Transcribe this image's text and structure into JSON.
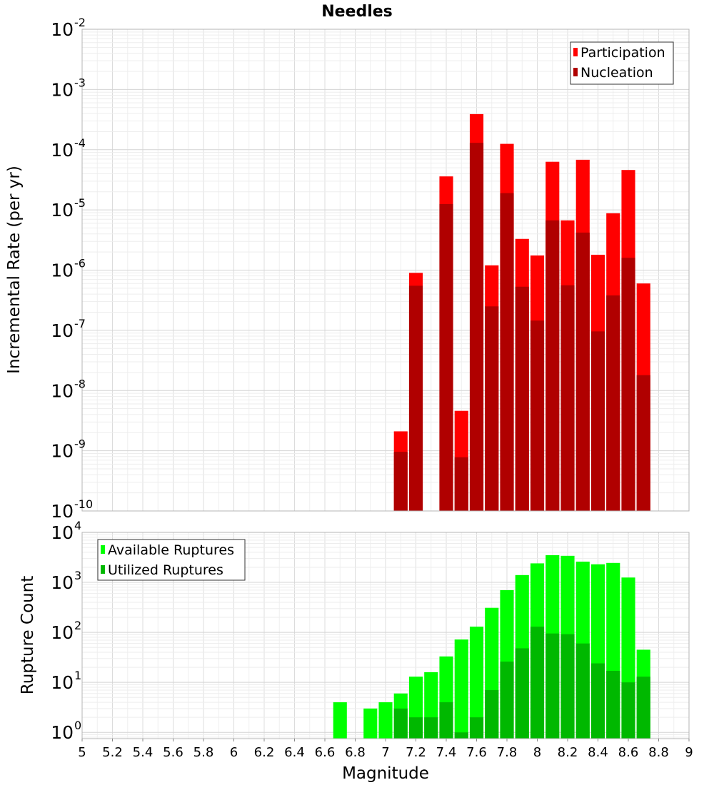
{
  "title": "Needles",
  "xlabel": "Magnitude",
  "x_ticks": [
    "5",
    "5.2",
    "5.4",
    "5.6",
    "5.8",
    "6",
    "6.2",
    "6.4",
    "6.6",
    "6.8",
    "7",
    "7.2",
    "7.4",
    "7.6",
    "7.8",
    "8",
    "8.2",
    "8.4",
    "8.6",
    "8.8",
    "9"
  ],
  "chart_data": [
    {
      "type": "bar",
      "title": "Needles",
      "ylabel": "Incremental Rate (per yr)",
      "yscale": "log",
      "xlim": [
        5,
        9
      ],
      "ylim": [
        1e-10,
        0.01
      ],
      "y_ticks": [
        {
          "base": "10",
          "exp": "-10"
        },
        {
          "base": "10",
          "exp": "-9"
        },
        {
          "base": "10",
          "exp": "-8"
        },
        {
          "base": "10",
          "exp": "-7"
        },
        {
          "base": "10",
          "exp": "-6"
        },
        {
          "base": "10",
          "exp": "-5"
        },
        {
          "base": "10",
          "exp": "-4"
        },
        {
          "base": "10",
          "exp": "-3"
        },
        {
          "base": "10",
          "exp": "-2"
        }
      ],
      "legend_position": "top-right",
      "grid": true,
      "x": [
        7.1,
        7.2,
        7.4,
        7.5,
        7.6,
        7.7,
        7.8,
        7.9,
        8.0,
        8.1,
        8.2,
        8.3,
        8.4,
        8.5,
        8.6,
        8.7
      ],
      "series": [
        {
          "name": "Participation",
          "color": "#ff0000",
          "values": [
            2.1e-09,
            9e-07,
            3.6e-05,
            4.6e-09,
            0.00039,
            1.2e-06,
            0.000125,
            3.3e-06,
            1.75e-06,
            6.3e-05,
            6.7e-06,
            6.8e-05,
            1.8e-06,
            8.8e-06,
            4.6e-05,
            6e-07
          ]
        },
        {
          "name": "Nucleation",
          "color": "#b00000",
          "values": [
            9.6e-10,
            5.5e-07,
            1.25e-05,
            7.8e-10,
            0.00013,
            2.5e-07,
            1.9e-05,
            5.3e-07,
            1.45e-07,
            6.7e-06,
            5.6e-07,
            4.2e-06,
            9.6e-08,
            3.8e-07,
            1.6e-06,
            1.8e-08
          ]
        }
      ]
    },
    {
      "type": "bar",
      "ylabel": "Rupture Count",
      "yscale": "log",
      "xlim": [
        5,
        9
      ],
      "ylim": [
        0.75,
        10000
      ],
      "y_ticks": [
        {
          "base": "10",
          "exp": "0"
        },
        {
          "base": "10",
          "exp": "1"
        },
        {
          "base": "10",
          "exp": "2"
        },
        {
          "base": "10",
          "exp": "3"
        },
        {
          "base": "10",
          "exp": "4"
        }
      ],
      "legend_position": "top-left",
      "grid": true,
      "x": [
        6.7,
        6.9,
        7.0,
        7.1,
        7.2,
        7.3,
        7.4,
        7.5,
        7.6,
        7.7,
        7.8,
        7.9,
        8.0,
        8.1,
        8.2,
        8.3,
        8.4,
        8.5,
        8.6,
        8.7
      ],
      "series": [
        {
          "name": "Available Ruptures",
          "color": "#00ff00",
          "values": [
            4,
            3,
            4,
            6,
            13,
            16,
            33,
            72,
            130,
            310,
            700,
            1400,
            2400,
            3500,
            3400,
            2600,
            2300,
            2450,
            1250,
            45
          ]
        },
        {
          "name": "Utilized Ruptures",
          "color": "#00b800",
          "values": [
            null,
            null,
            null,
            3,
            2,
            2,
            4,
            1,
            2,
            7,
            26,
            48,
            130,
            95,
            92,
            60,
            24,
            17,
            10,
            13
          ]
        }
      ]
    }
  ]
}
